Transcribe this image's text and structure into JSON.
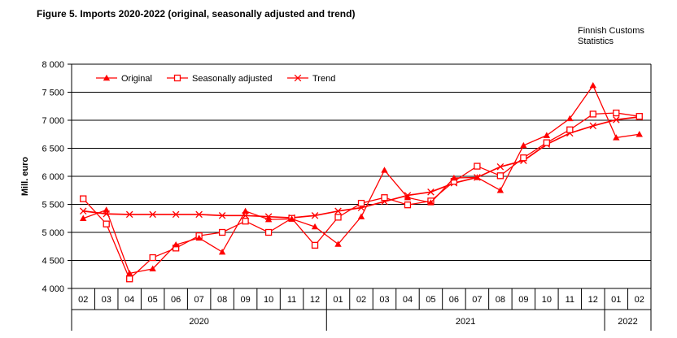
{
  "header": {
    "title": "Figure 5. Imports 2020-2022 (original, seasonally adjusted and trend)",
    "source": [
      "Finnish Customs",
      "Statistics"
    ]
  },
  "chart_data": {
    "type": "line",
    "title": "Imports 2020-2022 (original, seasonally adjusted and trend)",
    "ylabel": "Mill. euro",
    "ylim": [
      4000,
      8000
    ],
    "ytick_step": 500,
    "ytick_labels": [
      "4 000",
      "4 500",
      "5 000",
      "5 500",
      "6 000",
      "6 500",
      "7 000",
      "7 500",
      "8 000"
    ],
    "grid": "horizontal-black-lines",
    "legend_position": "inside-top-left",
    "categories": [
      "02",
      "03",
      "04",
      "05",
      "06",
      "07",
      "08",
      "09",
      "10",
      "11",
      "12",
      "01",
      "02",
      "03",
      "04",
      "05",
      "06",
      "07",
      "08",
      "09",
      "10",
      "11",
      "12",
      "01",
      "02"
    ],
    "year_groups": [
      {
        "label": "2020",
        "months": 11
      },
      {
        "label": "2021",
        "months": 12
      },
      {
        "label": "2022",
        "months": 2
      }
    ],
    "colors": {
      "series": "#ff0000",
      "axis": "#000000",
      "text": "#000000",
      "background": "#ffffff"
    },
    "series": [
      {
        "name": "Original",
        "marker": "triangle",
        "values": [
          5250,
          5400,
          4270,
          4350,
          4780,
          4900,
          4650,
          5380,
          5230,
          5240,
          5100,
          4790,
          5280,
          6110,
          5620,
          5530,
          5970,
          5980,
          5750,
          6550,
          6730,
          7030,
          7620,
          6690,
          6750
        ]
      },
      {
        "name": "Seasonally adjusted",
        "marker": "square",
        "values": [
          5600,
          5150,
          4170,
          4550,
          4720,
          4940,
          5000,
          5200,
          5000,
          5250,
          4770,
          5270,
          5520,
          5620,
          5490,
          5560,
          5910,
          6180,
          6010,
          6330,
          6600,
          6830,
          7110,
          7130,
          7070
        ]
      },
      {
        "name": "Trend",
        "marker": "x",
        "values": [
          5380,
          5330,
          5320,
          5320,
          5320,
          5320,
          5300,
          5300,
          5280,
          5260,
          5300,
          5380,
          5440,
          5550,
          5660,
          5720,
          5880,
          5980,
          6170,
          6280,
          6570,
          6770,
          6900,
          7010,
          7060
        ]
      }
    ]
  }
}
